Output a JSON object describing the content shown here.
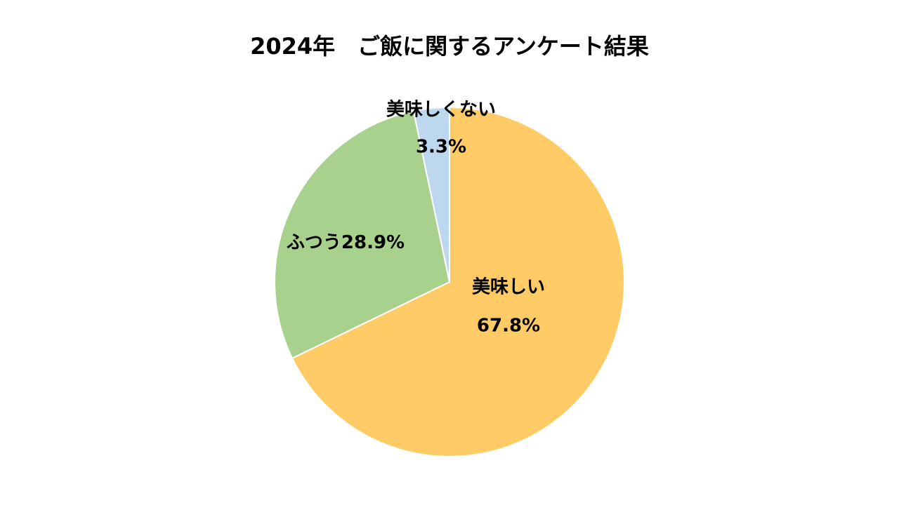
{
  "chart_data": {
    "type": "pie",
    "title": "2024年　ご飯に関するアンケート結果",
    "categories": [
      "美味しい",
      "ふつう",
      "美味しくない"
    ],
    "values": [
      67.8,
      28.9,
      3.3
    ],
    "value_labels": [
      "67.8%",
      "28.9%",
      "3.3%"
    ],
    "colors": [
      "#fecb67",
      "#a9d18e",
      "#bdd7ee"
    ]
  }
}
